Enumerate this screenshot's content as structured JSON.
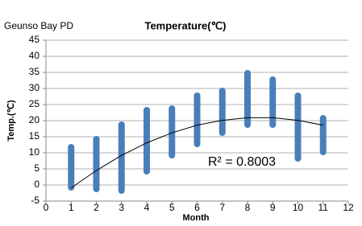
{
  "chart_data": {
    "type": "range-scatter",
    "title": "Temperature(℃)",
    "subtitle": "Geunso Bay PD",
    "x_label": "Month",
    "y_label": "Temp.(℃)",
    "annotation": "R² = 0.8003",
    "x": [
      1,
      2,
      3,
      4,
      5,
      6,
      7,
      8,
      9,
      10,
      11
    ],
    "low": [
      -1,
      -1.5,
      -2,
      4,
      9,
      12.5,
      16,
      18.5,
      18.5,
      8,
      10
    ],
    "high": [
      12,
      14.5,
      19,
      23.5,
      24,
      28,
      29.5,
      35,
      33,
      28,
      21
    ],
    "color": "#4a7ebb",
    "trend": {
      "x": [
        1,
        2,
        3,
        4,
        5,
        6,
        7,
        8,
        9,
        10,
        11
      ],
      "y": [
        -0.9,
        4.5,
        9.2,
        13.1,
        16.2,
        18.6,
        20.1,
        20.9,
        20.9,
        20.1,
        18.6
      ],
      "color": "#000000"
    },
    "xlim": [
      0,
      12
    ],
    "xticks": [
      0,
      1,
      2,
      3,
      4,
      5,
      6,
      7,
      8,
      9,
      10,
      11,
      12
    ],
    "ylim": [
      -5,
      45
    ],
    "yticks": [
      -5,
      0,
      5,
      10,
      15,
      20,
      25,
      30,
      35,
      40,
      45
    ],
    "grid": true
  }
}
